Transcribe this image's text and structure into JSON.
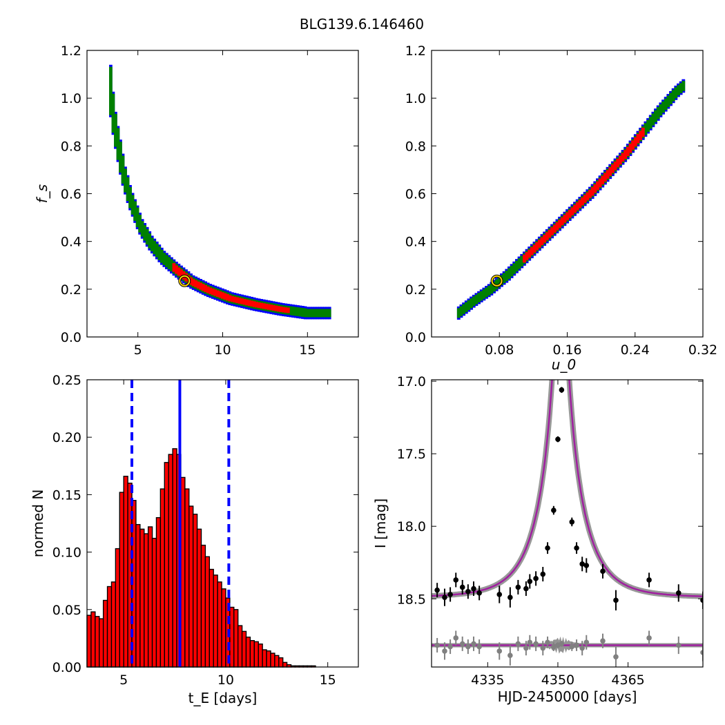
{
  "figure": {
    "title": "BLG139.6.146460"
  },
  "chart_data": [
    {
      "type": "heatmap",
      "panel": "fs-vs-tE",
      "xlabel": "",
      "ylabel": "f_s",
      "xlim": [
        2,
        18
      ],
      "ylim": [
        0.0,
        1.2
      ],
      "xticks": [
        5,
        10,
        15
      ],
      "yticks": [
        0.0,
        0.2,
        0.4,
        0.6,
        0.8,
        1.0,
        1.2
      ],
      "confidence_colors": {
        "outer": "#0000ff",
        "middle": "#008000",
        "inner": "#ff0000",
        "core": "#000000"
      },
      "ridge": [
        {
          "x": 3.4,
          "y": 1.03
        },
        {
          "x": 3.6,
          "y": 0.9
        },
        {
          "x": 3.9,
          "y": 0.78
        },
        {
          "x": 4.2,
          "y": 0.67
        },
        {
          "x": 4.6,
          "y": 0.57
        },
        {
          "x": 5.2,
          "y": 0.46
        },
        {
          "x": 5.8,
          "y": 0.39
        },
        {
          "x": 6.5,
          "y": 0.33
        },
        {
          "x": 7.3,
          "y": 0.28
        },
        {
          "x": 8.2,
          "y": 0.23
        },
        {
          "x": 9.2,
          "y": 0.195
        },
        {
          "x": 10.5,
          "y": 0.16
        },
        {
          "x": 12.0,
          "y": 0.135
        },
        {
          "x": 13.5,
          "y": 0.115
        },
        {
          "x": 15.0,
          "y": 0.1
        },
        {
          "x": 16.3,
          "y": 0.1
        }
      ],
      "best_fit": {
        "x": 7.75,
        "y": 0.235
      }
    },
    {
      "type": "heatmap",
      "panel": "fs-vs-u0",
      "xlabel": "u_0",
      "ylabel": "",
      "xlim": [
        0.0,
        0.32
      ],
      "ylim": [
        0.0,
        1.2
      ],
      "xticks": [
        0.08,
        0.16,
        0.24,
        0.32
      ],
      "yticks": [
        0.0,
        0.2,
        0.4,
        0.6,
        0.8,
        1.0,
        1.2
      ],
      "ridge": [
        {
          "x": 0.032,
          "y": 0.1
        },
        {
          "x": 0.05,
          "y": 0.15
        },
        {
          "x": 0.07,
          "y": 0.2
        },
        {
          "x": 0.09,
          "y": 0.26
        },
        {
          "x": 0.11,
          "y": 0.33
        },
        {
          "x": 0.13,
          "y": 0.4
        },
        {
          "x": 0.15,
          "y": 0.47
        },
        {
          "x": 0.17,
          "y": 0.54
        },
        {
          "x": 0.19,
          "y": 0.61
        },
        {
          "x": 0.21,
          "y": 0.69
        },
        {
          "x": 0.23,
          "y": 0.77
        },
        {
          "x": 0.25,
          "y": 0.86
        },
        {
          "x": 0.27,
          "y": 0.95
        },
        {
          "x": 0.29,
          "y": 1.03
        },
        {
          "x": 0.3,
          "y": 1.06
        }
      ],
      "best_fit": {
        "x": 0.077,
        "y": 0.235
      }
    },
    {
      "type": "bar",
      "panel": "tE-histogram",
      "xlabel": "t_E [days]",
      "ylabel": "normed N",
      "xlim": [
        3.2,
        16.5
      ],
      "ylim": [
        0.0,
        0.25
      ],
      "xticks": [
        5,
        10,
        15
      ],
      "yticks": [
        0.0,
        0.05,
        0.1,
        0.15,
        0.2,
        0.25
      ],
      "bin_start": 3.2,
      "bin_width": 0.2,
      "bar_color": "#ff0000",
      "values": [
        0.045,
        0.048,
        0.044,
        0.042,
        0.058,
        0.07,
        0.074,
        0.103,
        0.152,
        0.166,
        0.16,
        0.145,
        0.124,
        0.12,
        0.116,
        0.122,
        0.112,
        0.13,
        0.155,
        0.178,
        0.185,
        0.19,
        0.185,
        0.165,
        0.155,
        0.14,
        0.133,
        0.12,
        0.106,
        0.096,
        0.085,
        0.08,
        0.074,
        0.068,
        0.06,
        0.052,
        0.05,
        0.036,
        0.031,
        0.026,
        0.023,
        0.022,
        0.02,
        0.015,
        0.014,
        0.012,
        0.01,
        0.008,
        0.004,
        0.002,
        0.001,
        0.001,
        0.001,
        0.001,
        0.001,
        0.001
      ],
      "median_line": 7.75,
      "interval_lines": [
        5.4,
        10.15
      ],
      "line_color": "#0000ff"
    },
    {
      "type": "scatter",
      "panel": "light-curve",
      "xlabel": "HJD-2450000 [days]",
      "ylabel": "I [mag]",
      "xlim": [
        4323,
        4381
      ],
      "ylim": [
        18.97,
        16.99
      ],
      "xticks": [
        4335,
        4350,
        4365
      ],
      "yticks": [
        17.0,
        17.5,
        18.0,
        18.5
      ],
      "model": {
        "t0": 4350.6,
        "u0": 0.077,
        "tE": 7.75,
        "base": 18.49,
        "line_color": "#a020a0",
        "band_color": "#808080"
      },
      "points": [
        {
          "x": 4324.2,
          "y": 18.44,
          "err": 0.05
        },
        {
          "x": 4325.8,
          "y": 18.49,
          "err": 0.06
        },
        {
          "x": 4327.0,
          "y": 18.47,
          "err": 0.05
        },
        {
          "x": 4328.2,
          "y": 18.37,
          "err": 0.05
        },
        {
          "x": 4329.6,
          "y": 18.42,
          "err": 0.05
        },
        {
          "x": 4330.8,
          "y": 18.45,
          "err": 0.05
        },
        {
          "x": 4332.0,
          "y": 18.43,
          "err": 0.05
        },
        {
          "x": 4333.2,
          "y": 18.46,
          "err": 0.05
        },
        {
          "x": 4337.5,
          "y": 18.47,
          "err": 0.06
        },
        {
          "x": 4339.8,
          "y": 18.49,
          "err": 0.07
        },
        {
          "x": 4341.5,
          "y": 18.42,
          "err": 0.05
        },
        {
          "x": 4343.2,
          "y": 18.43,
          "err": 0.05
        },
        {
          "x": 4344.0,
          "y": 18.38,
          "err": 0.05
        },
        {
          "x": 4345.3,
          "y": 18.36,
          "err": 0.05
        },
        {
          "x": 4346.8,
          "y": 18.33,
          "err": 0.05
        },
        {
          "x": 4347.8,
          "y": 18.15,
          "err": 0.04
        },
        {
          "x": 4349.1,
          "y": 17.89,
          "err": 0.03
        },
        {
          "x": 4350.0,
          "y": 17.4,
          "err": 0.02
        },
        {
          "x": 4350.8,
          "y": 17.06,
          "err": 0.02
        },
        {
          "x": 4353.0,
          "y": 17.97,
          "err": 0.03
        },
        {
          "x": 4354.0,
          "y": 18.15,
          "err": 0.04
        },
        {
          "x": 4355.2,
          "y": 18.26,
          "err": 0.05
        },
        {
          "x": 4356.1,
          "y": 18.27,
          "err": 0.05
        },
        {
          "x": 4359.6,
          "y": 18.31,
          "err": 0.05
        },
        {
          "x": 4362.4,
          "y": 18.51,
          "err": 0.07
        },
        {
          "x": 4369.5,
          "y": 18.37,
          "err": 0.05
        },
        {
          "x": 4375.8,
          "y": 18.46,
          "err": 0.06
        },
        {
          "x": 4381.0,
          "y": 18.51,
          "err": 0.06
        }
      ],
      "residual_offset": 18.82,
      "residuals": [
        0.0,
        0.04,
        0.01,
        -0.05,
        -0.01,
        0.01,
        -0.01,
        0.01,
        0.04,
        0.07,
        -0.01,
        0.02,
        -0.02,
        -0.01,
        0.02,
        -0.02,
        0.01,
        0.0,
        -0.01,
        0.01,
        0.0,
        0.02,
        -0.02,
        -0.03,
        0.08,
        -0.05,
        0.0,
        0.05
      ],
      "point_color": "#000000",
      "residual_color": "#808080"
    }
  ]
}
